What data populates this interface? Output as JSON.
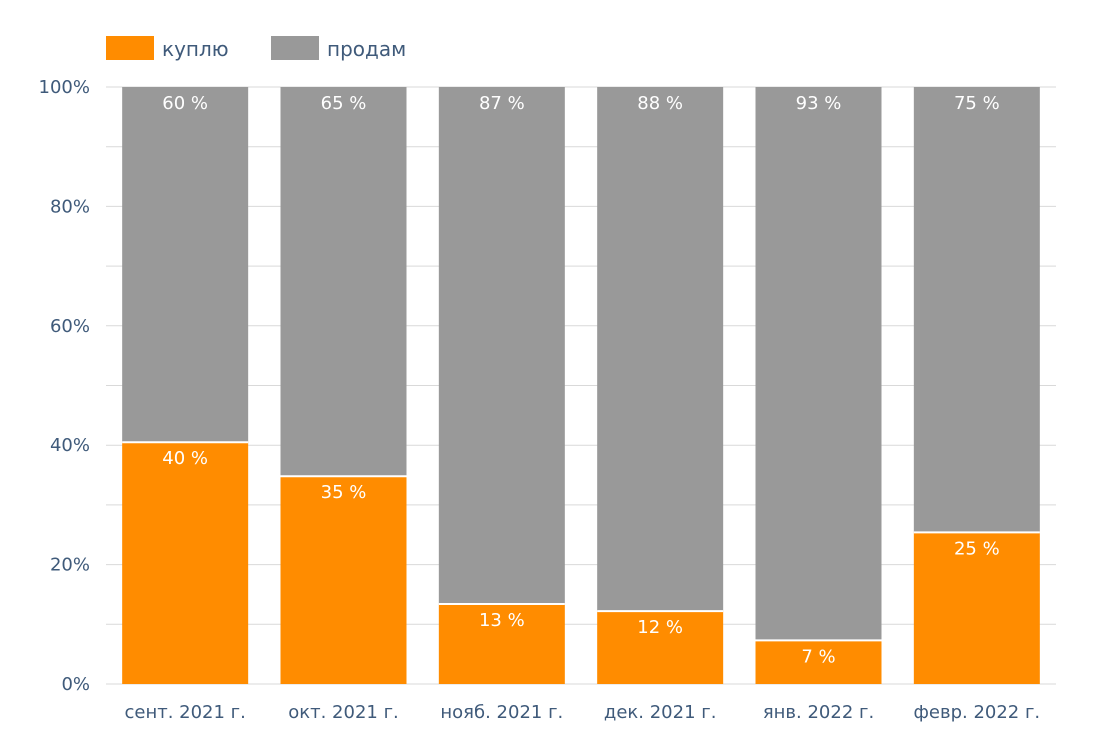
{
  "chart_data": {
    "type": "bar",
    "stacked": true,
    "percent_stacked": true,
    "categories": [
      "сент. 2021 г.",
      "окт. 2021 г.",
      "нояб. 2021 г.",
      "дек. 2021 г.",
      "янв. 2022 г.",
      "февр. 2022 г."
    ],
    "series": [
      {
        "name": "куплю",
        "color": "#ff8c00",
        "values": [
          40.5,
          34.8,
          13.4,
          12.2,
          7.3,
          25.4
        ],
        "labels": [
          "40 %",
          "35 %",
          "13 %",
          "12 %",
          "7 %",
          "25 %"
        ]
      },
      {
        "name": "продам",
        "color": "#999999",
        "values": [
          59.5,
          65.2,
          86.6,
          87.8,
          92.7,
          74.6
        ],
        "labels": [
          "60 %",
          "65 %",
          "87 %",
          "88 %",
          "93 %",
          "75 %"
        ]
      }
    ],
    "ylim": [
      0,
      100
    ],
    "yticks": [
      "0%",
      "20%",
      "40%",
      "60%",
      "80%",
      "100%"
    ],
    "title": "",
    "xlabel": "",
    "ylabel": "",
    "grid": true,
    "legend_position": "top-left"
  }
}
